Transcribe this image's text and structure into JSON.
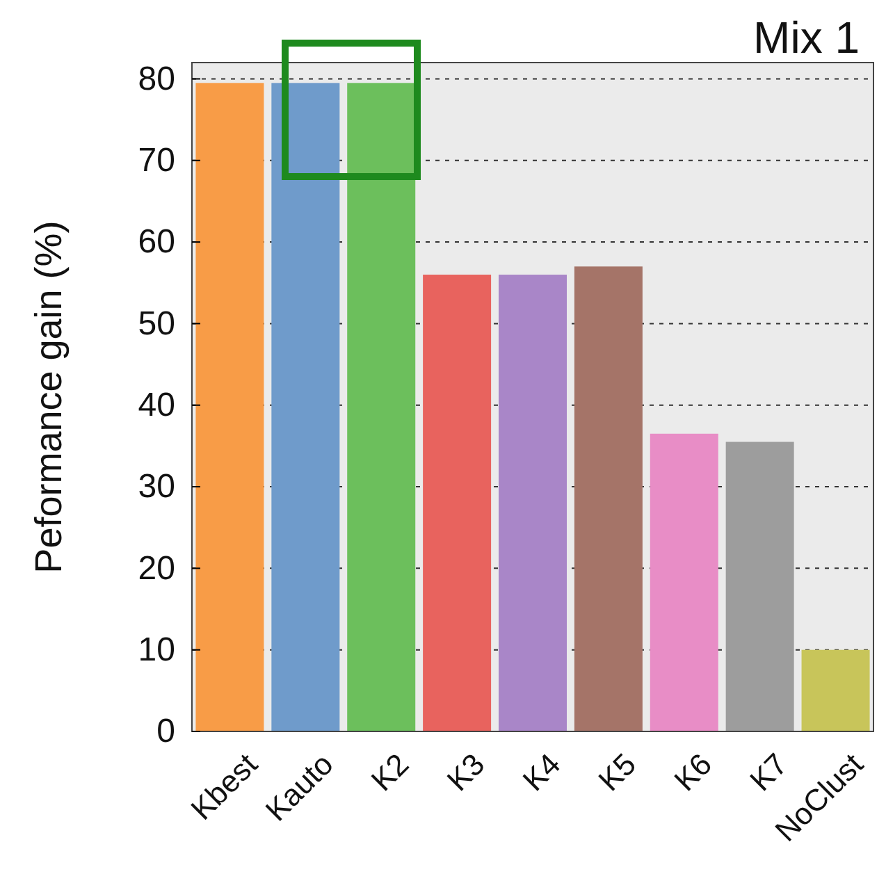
{
  "chart_data": {
    "type": "bar",
    "title": "Mix 1",
    "ylabel": "Peformance gain (%)",
    "categories": [
      "Kbest",
      "Kauto",
      "K2",
      "K3",
      "K4",
      "K5",
      "K6",
      "K7",
      "NoClust"
    ],
    "values": [
      79.5,
      79.5,
      79.5,
      56,
      56,
      57,
      36.5,
      35.5,
      10
    ],
    "colors": [
      "#f89c47",
      "#6f9bcb",
      "#6cbf5c",
      "#e8635e",
      "#a986c8",
      "#a57468",
      "#e88dc6",
      "#9d9d9d",
      "#c8c55a"
    ],
    "ylim": [
      0,
      82
    ],
    "yticks": [
      0,
      10,
      20,
      30,
      40,
      50,
      60,
      70,
      80
    ],
    "grid": "y"
  }
}
